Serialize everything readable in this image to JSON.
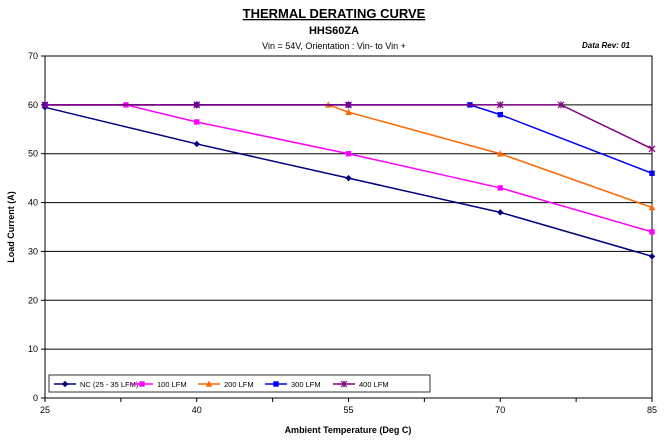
{
  "chart_data": {
    "type": "line",
    "title": "THERMAL DERATING CURVE",
    "subtitle": "HHS60ZA",
    "condition": "Vin = 54V, Orientation : Vin- to Vin +",
    "data_rev": "Data Rev:  01",
    "xlabel": "Ambient Temperature (Deg C)",
    "ylabel": "Load Current (A)",
    "xlim": [
      25,
      85
    ],
    "ylim": [
      0,
      70
    ],
    "xticks": [
      25,
      40,
      55,
      70,
      85
    ],
    "yticks": [
      0,
      10,
      20,
      30,
      40,
      50,
      60,
      70
    ],
    "grid": "horizontal",
    "legend_position": "bottom-left",
    "series": [
      {
        "name": "NC (25 - 35 LFM)",
        "color": "#000080",
        "marker": "diamond",
        "x": [
          25,
          40,
          55,
          70,
          85
        ],
        "y": [
          59.5,
          52,
          45,
          38,
          29
        ]
      },
      {
        "name": "100 LFM",
        "color": "#ff00ff",
        "marker": "square",
        "x": [
          25,
          33,
          40,
          55,
          70,
          85
        ],
        "y": [
          60,
          60,
          56.5,
          50,
          43,
          34
        ]
      },
      {
        "name": "200 LFM",
        "color": "#ff6600",
        "marker": "triangle",
        "x": [
          25,
          53,
          55,
          70,
          85
        ],
        "y": [
          60,
          60,
          58.5,
          50,
          39
        ]
      },
      {
        "name": "300 LFM",
        "color": "#0000ff",
        "marker": "square",
        "x": [
          25,
          40,
          55,
          67,
          70,
          85
        ],
        "y": [
          60,
          60,
          60,
          60,
          58,
          46
        ]
      },
      {
        "name": "400 LFM",
        "color": "#800080",
        "marker": "star",
        "x": [
          25,
          40,
          55,
          70,
          76,
          85
        ],
        "y": [
          60,
          60,
          60,
          60,
          60,
          51
        ]
      }
    ]
  }
}
